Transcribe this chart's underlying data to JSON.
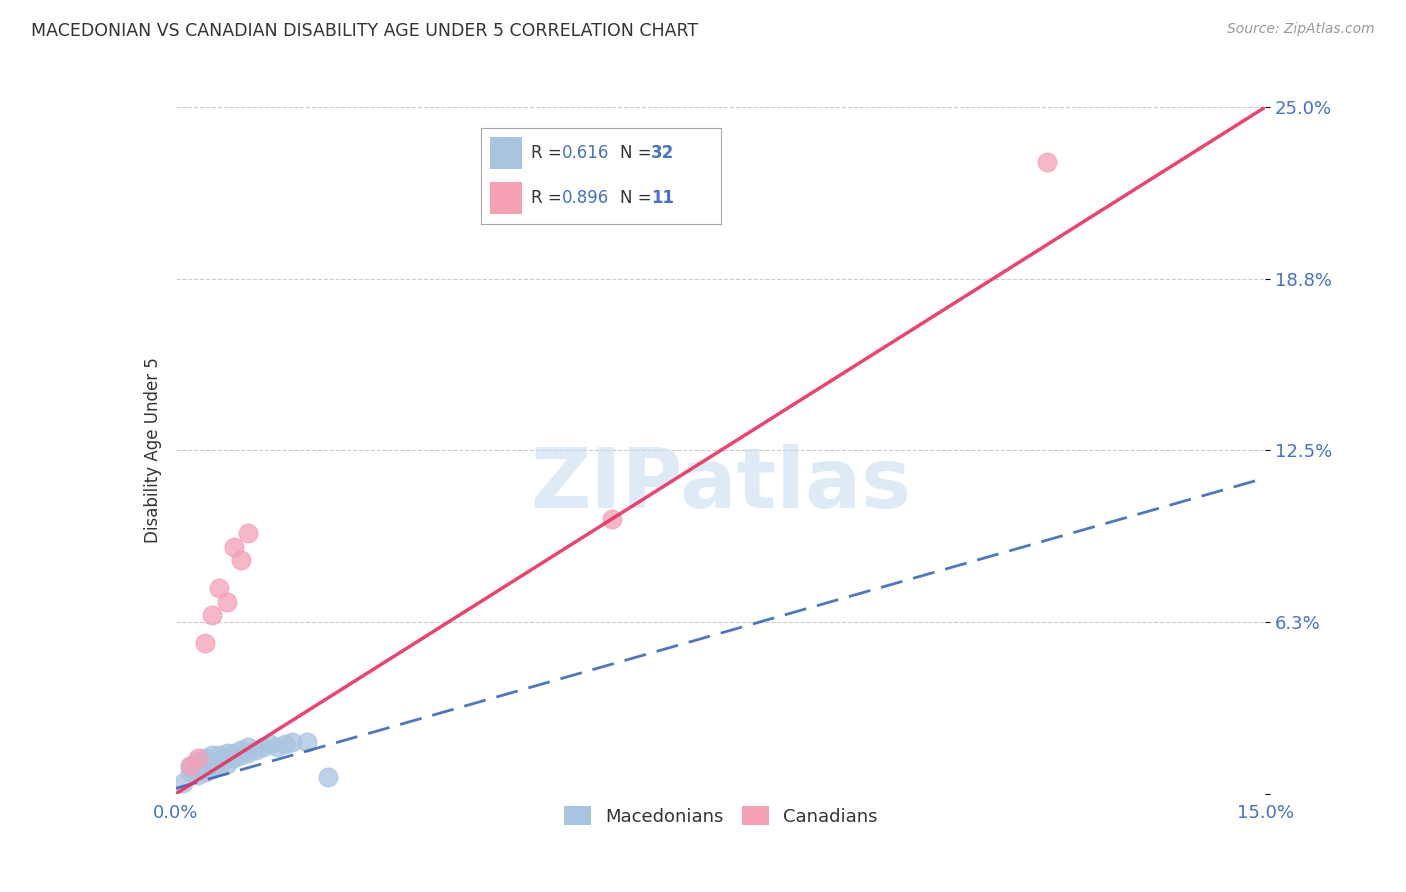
{
  "title": "MACEDONIAN VS CANADIAN DISABILITY AGE UNDER 5 CORRELATION CHART",
  "source": "Source: ZipAtlas.com",
  "ylabel": "Disability Age Under 5",
  "xlim": [
    0.0,
    0.15
  ],
  "ylim": [
    0.0,
    0.25
  ],
  "xtick_positions": [
    0.0,
    0.05,
    0.1,
    0.15
  ],
  "xticklabels": [
    "0.0%",
    "",
    "",
    "15.0%"
  ],
  "ytick_positions": [
    0.0,
    0.0625,
    0.125,
    0.1875,
    0.25
  ],
  "yticklabels": [
    "",
    "6.3%",
    "12.5%",
    "18.8%",
    "25.0%"
  ],
  "background_color": "#ffffff",
  "grid_color": "#cccccc",
  "macedonian_scatter_color": "#a8c4e0",
  "macedonian_line_color": "#3060b0",
  "canadian_scatter_color": "#f4a0b5",
  "canadian_line_color": "#e83060",
  "macedonian_R": "0.616",
  "macedonian_N": "32",
  "canadian_R": "0.896",
  "canadian_N": "11",
  "macedonian_scatter": [
    [
      0.002,
      0.008
    ],
    [
      0.002,
      0.01
    ],
    [
      0.003,
      0.007
    ],
    [
      0.003,
      0.009
    ],
    [
      0.003,
      0.012
    ],
    [
      0.004,
      0.008
    ],
    [
      0.004,
      0.01
    ],
    [
      0.004,
      0.013
    ],
    [
      0.005,
      0.009
    ],
    [
      0.005,
      0.011
    ],
    [
      0.005,
      0.014
    ],
    [
      0.006,
      0.01
    ],
    [
      0.006,
      0.012
    ],
    [
      0.006,
      0.014
    ],
    [
      0.007,
      0.011
    ],
    [
      0.007,
      0.013
    ],
    [
      0.007,
      0.015
    ],
    [
      0.008,
      0.013
    ],
    [
      0.008,
      0.015
    ],
    [
      0.009,
      0.014
    ],
    [
      0.009,
      0.016
    ],
    [
      0.01,
      0.015
    ],
    [
      0.01,
      0.017
    ],
    [
      0.011,
      0.016
    ],
    [
      0.012,
      0.017
    ],
    [
      0.013,
      0.018
    ],
    [
      0.014,
      0.017
    ],
    [
      0.015,
      0.018
    ],
    [
      0.016,
      0.019
    ],
    [
      0.018,
      0.019
    ],
    [
      0.021,
      0.006
    ],
    [
      0.001,
      0.004
    ]
  ],
  "canadian_scatter": [
    [
      0.002,
      0.01
    ],
    [
      0.003,
      0.013
    ],
    [
      0.004,
      0.055
    ],
    [
      0.005,
      0.065
    ],
    [
      0.006,
      0.075
    ],
    [
      0.007,
      0.07
    ],
    [
      0.008,
      0.09
    ],
    [
      0.009,
      0.085
    ],
    [
      0.01,
      0.095
    ],
    [
      0.12,
      0.23
    ],
    [
      0.06,
      0.1
    ]
  ],
  "watermark_text": "ZIPatlas",
  "watermark_color": "#c8ddf0",
  "legend_macedonian": "Macedonians",
  "legend_canadian": "Canadians",
  "mac_line_x": [
    0.0,
    0.15
  ],
  "mac_line_y": [
    0.002,
    0.115
  ],
  "can_line_x": [
    0.0,
    0.15
  ],
  "can_line_y": [
    0.0,
    0.25
  ],
  "title_color": "#333333",
  "tick_color": "#4472c4",
  "legend_box_color": "#4472c4",
  "legend_R_color": "#444444"
}
